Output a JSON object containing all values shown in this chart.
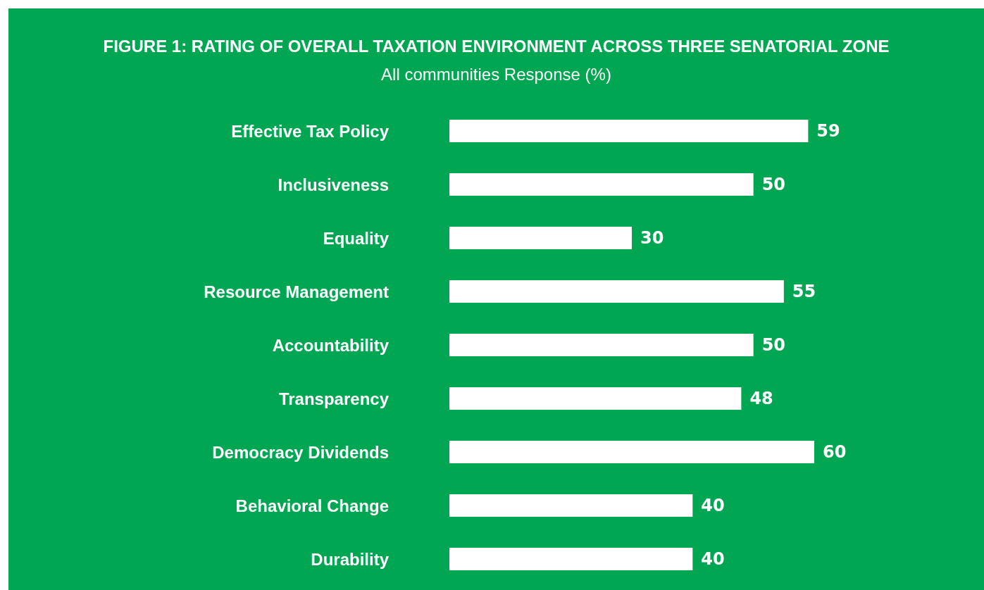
{
  "chart_data": {
    "type": "bar",
    "orientation": "horizontal",
    "title": "FIGURE 1: RATING OF OVERALL TAXATION ENVIRONMENT ACROSS THREE SENATORIAL ZONE",
    "subtitle": "All communities Response (%)",
    "categories": [
      "Effective Tax Policy",
      "Inclusiveness",
      "Equality",
      "Resource Management",
      "Accountability",
      "Transparency",
      "Democracy Dividends",
      "Behavioral Change",
      "Durability"
    ],
    "values": [
      59,
      50,
      30,
      55,
      50,
      48,
      60,
      40,
      40
    ],
    "color": "#ffffff",
    "data_labels": true
  }
}
